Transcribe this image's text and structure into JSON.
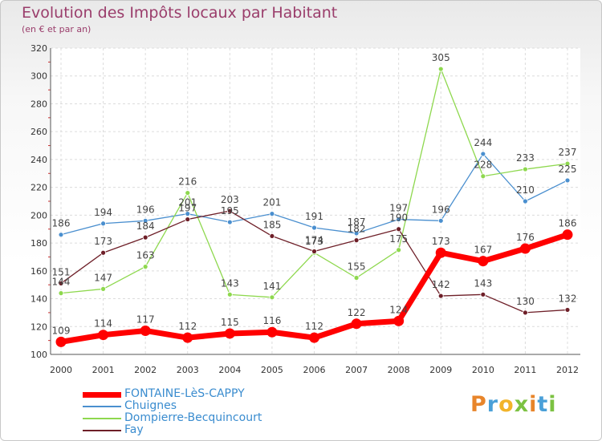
{
  "header": {
    "title": "Evolution des Impôts locaux par Habitant",
    "subtitle": "(en € et par an)"
  },
  "logo": {
    "text": "Proxiti"
  },
  "chart_data": {
    "type": "line",
    "title": "Evolution des Impôts locaux par Habitant",
    "subtitle": "(en € et par an)",
    "xlabel": "",
    "ylabel": "",
    "ylim": [
      100,
      320
    ],
    "y_ticks": [
      100,
      120,
      140,
      160,
      180,
      200,
      220,
      240,
      260,
      280,
      300,
      320
    ],
    "grid": true,
    "legend_position": "bottom-left",
    "categories": [
      "2000",
      "2001",
      "2002",
      "2003",
      "2004",
      "2005",
      "2006",
      "2007",
      "2008",
      "2009",
      "2010",
      "2011",
      "2012"
    ],
    "series": [
      {
        "name": "FONTAINE-LèS-CAPPY",
        "color": "#ff0000",
        "values": [
          109,
          114,
          117,
          112,
          115,
          116,
          112,
          122,
          124,
          173,
          167,
          176,
          186
        ],
        "labels": [
          "109",
          "114",
          "117",
          "112",
          "115",
          "116",
          "112",
          "122",
          "124",
          "173",
          "167",
          "176",
          "186"
        ]
      },
      {
        "name": "Chuignes",
        "color": "#4a8fcf",
        "values": [
          186,
          194,
          196,
          201,
          195,
          201,
          191,
          187,
          197,
          196,
          244,
          210,
          225
        ],
        "labels": [
          "186",
          "194",
          "196",
          "201",
          "195",
          "201",
          "191",
          "187",
          "197",
          "196",
          "244",
          "210",
          "225"
        ]
      },
      {
        "name": "Dompierre-Becquincourt",
        "color": "#8ed84e",
        "values": [
          144,
          147,
          163,
          216,
          143,
          141,
          173,
          155,
          175,
          305,
          228,
          233,
          237
        ],
        "labels": [
          "144",
          "147",
          "163",
          "216",
          "143",
          "141",
          "173",
          "155",
          "175",
          "305",
          "228",
          "233",
          "237"
        ]
      },
      {
        "name": "Fay",
        "color": "#6e1f28",
        "values": [
          151,
          173,
          184,
          197,
          203,
          185,
          174,
          182,
          190,
          142,
          143,
          130,
          132
        ],
        "labels": [
          "151",
          "173",
          "184",
          "197",
          "203",
          "185",
          "174",
          "182",
          "190",
          "142",
          "143",
          "130",
          "132"
        ]
      }
    ]
  }
}
